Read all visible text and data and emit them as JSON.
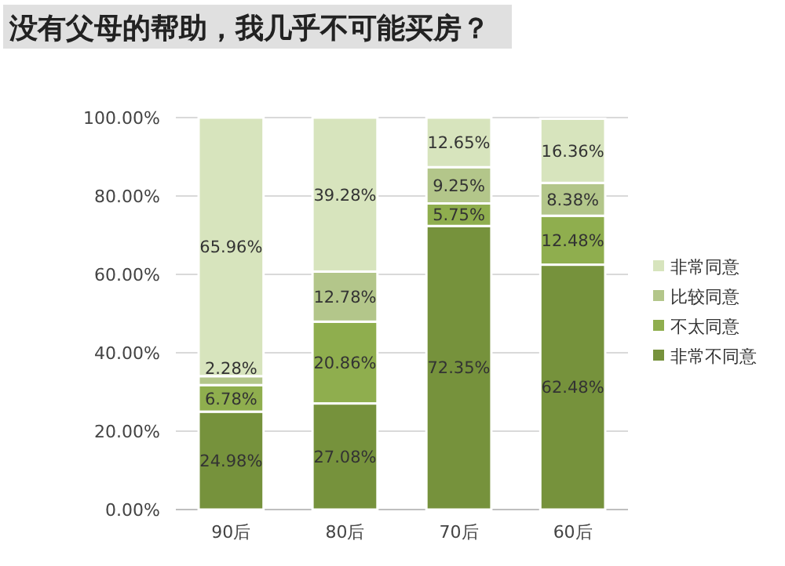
{
  "chart_data": {
    "type": "bar",
    "stacked": true,
    "title": "没有父母的帮助，我几乎不可能买房？",
    "categories": [
      "90后",
      "80后",
      "70后",
      "60后"
    ],
    "series": [
      {
        "name": "非常不同意",
        "color": "#76923c",
        "values": [
          24.98,
          27.08,
          72.35,
          62.48
        ],
        "value_labels": [
          "24.98%",
          "27.08%",
          "72.35%",
          "62.48%"
        ]
      },
      {
        "name": "不太同意",
        "color": "#8fae4e",
        "values": [
          6.78,
          20.86,
          5.75,
          12.48
        ],
        "value_labels": [
          "6.78%",
          "20.86%",
          "5.75%",
          "12.48%"
        ]
      },
      {
        "name": "比较同意",
        "color": "#b3c68a",
        "values": [
          2.28,
          12.78,
          9.25,
          8.38
        ],
        "value_labels": [
          "2.28%",
          "12.78%",
          "9.25%",
          "8.38%"
        ]
      },
      {
        "name": "非常同意",
        "color": "#d7e4bd",
        "values": [
          65.96,
          39.28,
          12.65,
          16.36
        ],
        "value_labels": [
          "65.96%",
          "39.28%",
          "12.65%",
          "16.36%"
        ]
      }
    ],
    "ylim": [
      0,
      100
    ],
    "yticks": [
      {
        "value": 0,
        "label": "0.00%"
      },
      {
        "value": 20,
        "label": "20.00%"
      },
      {
        "value": 40,
        "label": "40.00%"
      },
      {
        "value": 60,
        "label": "60.00%"
      },
      {
        "value": 80,
        "label": "80.00%"
      },
      {
        "value": 100,
        "label": "100.00%"
      }
    ],
    "grid": "y",
    "legend": "right"
  }
}
